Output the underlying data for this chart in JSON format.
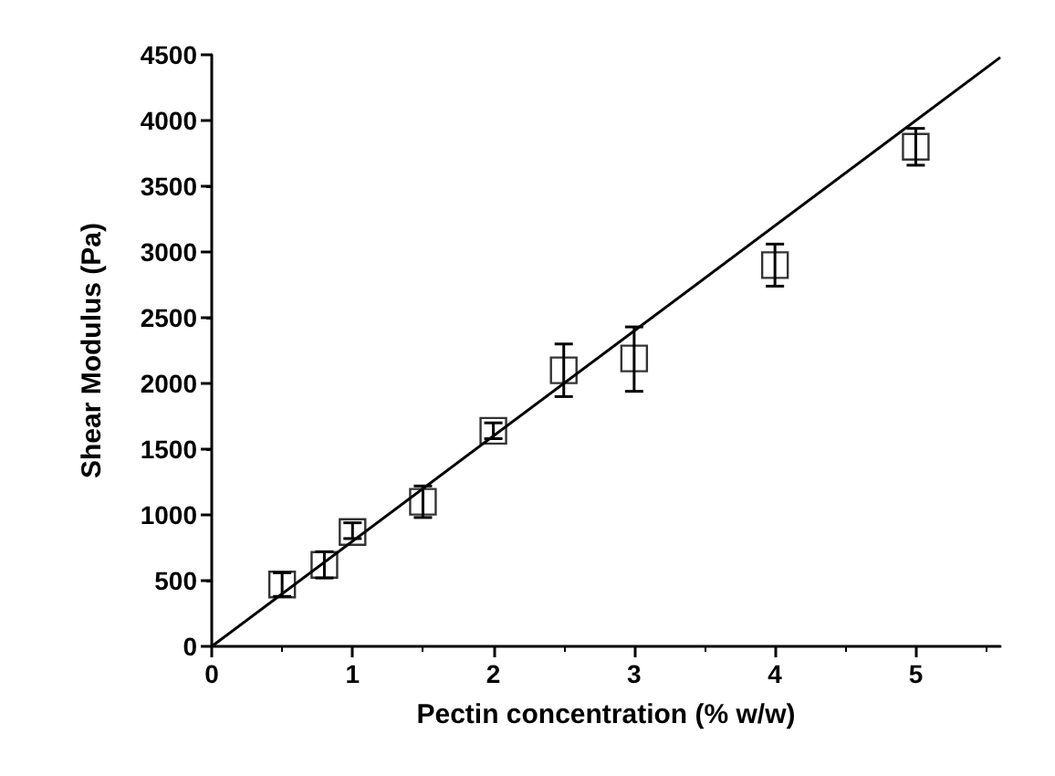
{
  "chart_data": {
    "type": "scatter",
    "xlabel": "Pectin concentration (% w/w)",
    "ylabel": "Shear Modulus (Pa)",
    "x": [
      0.5,
      0.8,
      1,
      1.5,
      2,
      2.5,
      3,
      4,
      5
    ],
    "series": [
      {
        "color": "#000000",
        "marker": "square",
        "values": [
          470,
          620,
          870,
          1100,
          1640,
          2100,
          2190,
          2900,
          3800
        ],
        "errors": [
          [
            380,
            560
          ],
          [
            520,
            720
          ],
          [
            820,
            940
          ],
          [
            980,
            1220
          ],
          [
            1580,
            1700
          ],
          [
            1900,
            2300
          ],
          [
            1940,
            2430
          ],
          [
            2740,
            3060
          ],
          [
            3660,
            3940
          ]
        ]
      },
      {
        "type": "line",
        "color": "#000000",
        "x": [
          0,
          5.6
        ],
        "values": [
          0,
          4480
        ],
        "marker": "none"
      }
    ],
    "xlim": [
      0,
      5.6
    ],
    "ylim": [
      0,
      4500
    ],
    "xticks": [
      0,
      1,
      2,
      3,
      4,
      5
    ],
    "yticks": [
      0,
      500,
      1000,
      1500,
      2000,
      2500,
      3000,
      3500,
      4000,
      4500
    ],
    "grid": false
  }
}
